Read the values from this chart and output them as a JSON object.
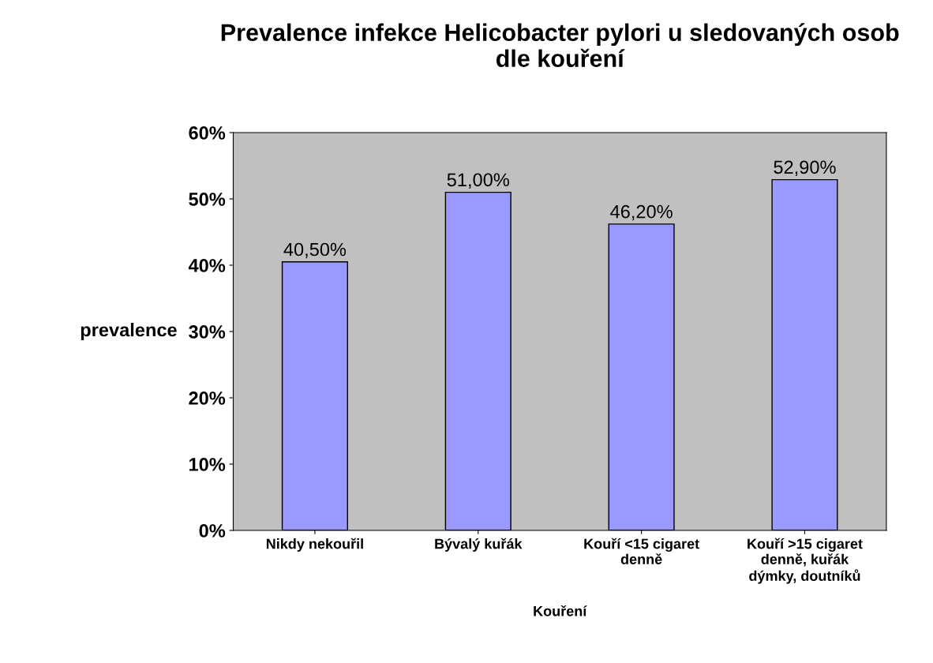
{
  "chart_data": {
    "type": "bar",
    "title": "Prevalence infekce Helicobacter pylori u sledovaných osob\ndle kouření",
    "xlabel": "Kouření",
    "ylabel": "prevalence",
    "categories": [
      "Nikdy nekouřil",
      "Bývalý kuřák",
      "Kouří <15 cigaret\ndenně",
      "Kouří >15 cigaret\ndenně, kuřák\ndýmky, doutníků"
    ],
    "values": [
      40.5,
      51.0,
      46.2,
      52.9
    ],
    "value_labels": [
      "40,50%",
      "51,00%",
      "46,20%",
      "52,90%"
    ],
    "color": "#9999ff",
    "ylim": [
      0,
      60
    ],
    "yticks": [
      {
        "value": 0,
        "label": "0%"
      },
      {
        "value": 10,
        "label": "10%"
      },
      {
        "value": 20,
        "label": "20%"
      },
      {
        "value": 30,
        "label": "30%"
      },
      {
        "value": 40,
        "label": "40%"
      },
      {
        "value": 50,
        "label": "50%"
      },
      {
        "value": 60,
        "label": "60%"
      }
    ],
    "grid": false
  }
}
